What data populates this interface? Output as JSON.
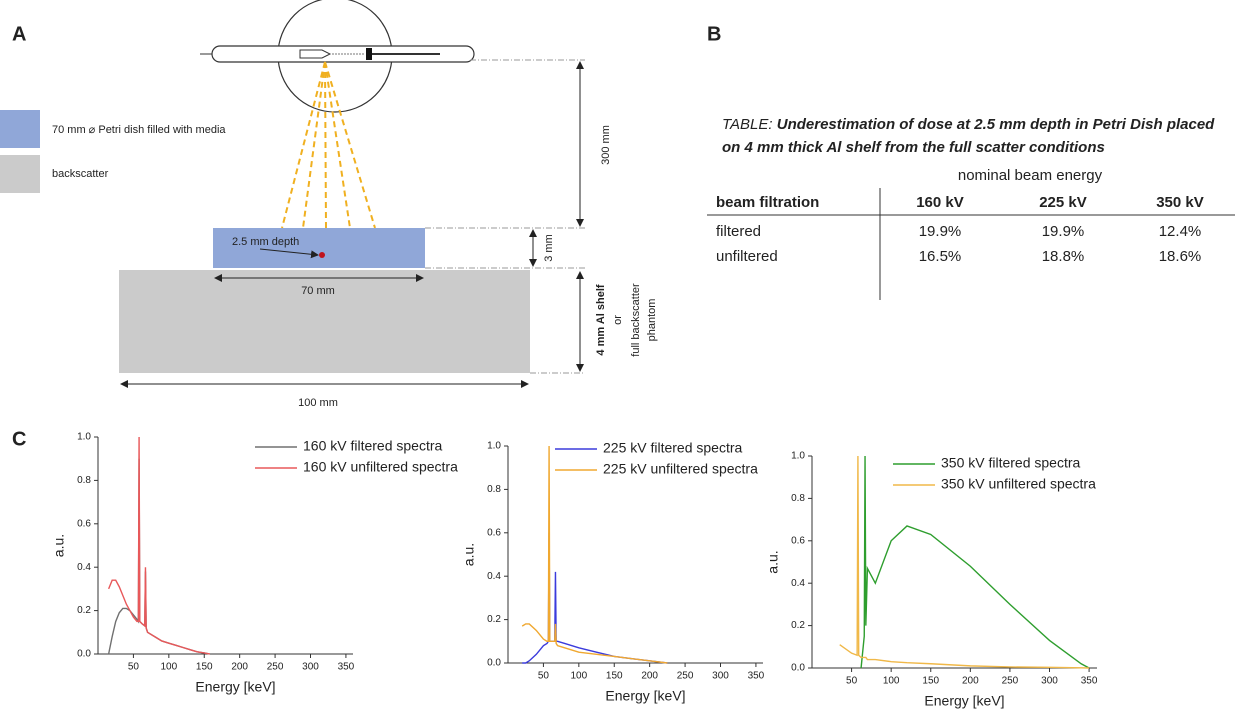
{
  "panels": {
    "a": "A",
    "b": "B",
    "c": "C"
  },
  "diagram": {
    "legend": [
      "70 mm ⌀ Petri dish filled with media",
      "backscatter"
    ],
    "depth_label": "2.5 mm depth",
    "dish_width": "70 mm",
    "shelf_width": "100 mm",
    "distance": "300 mm",
    "dish_height": "3 mm",
    "shelf_label": "4 mm Al shelf",
    "or": "or",
    "alt_label": [
      "full backscatter",
      "phantom"
    ]
  },
  "table": {
    "title_prefix": "TABLE:",
    "title": "Underestimation of dose at 2.5 mm depth in Petri Dish placed on 4 mm thick Al shelf from the full scatter conditions",
    "group_header": "nominal beam energy",
    "header": [
      "beam filtration",
      "160 kV",
      "225 kV",
      "350 kV"
    ],
    "rows": [
      [
        "filtered",
        "19.9%",
        "19.9%",
        "12.4%"
      ],
      [
        "unfiltered",
        "16.5%",
        "18.8%",
        "18.6%"
      ]
    ]
  },
  "chart_data": [
    {
      "type": "line",
      "xlabel": "Energy [keV]",
      "ylabel": "a.u.",
      "xlim": [
        0,
        360
      ],
      "ylim": [
        0,
        1.0
      ],
      "xticks": [
        50,
        100,
        150,
        200,
        250,
        300,
        350
      ],
      "yticks": [
        {
          "value": 0,
          "label": "0.0"
        },
        0.2,
        0.4,
        0.6,
        0.8,
        {
          "value": 1.0,
          "label": "1.0"
        }
      ],
      "legend": "upper right",
      "x": [
        15,
        20,
        25,
        30,
        35,
        40,
        45,
        50,
        55,
        57,
        58,
        59,
        62,
        66,
        67,
        68,
        70,
        80,
        90,
        100,
        110,
        120,
        130,
        140,
        150,
        158
      ],
      "series": [
        {
          "name": "160 kV filtered spectra",
          "color": "#707070",
          "values": [
            0.0,
            0.08,
            0.15,
            0.19,
            0.21,
            0.21,
            0.2,
            0.18,
            0.16,
            0.15,
            0.9,
            0.15,
            0.14,
            0.13,
            0.38,
            0.12,
            0.1,
            0.08,
            0.06,
            0.05,
            0.04,
            0.03,
            0.02,
            0.01,
            0.005,
            0
          ]
        },
        {
          "name": "160 kV unfiltered spectra",
          "color": "#e8585a",
          "values": [
            0.3,
            0.34,
            0.34,
            0.31,
            0.27,
            0.23,
            0.2,
            0.17,
            0.15,
            0.15,
            1.0,
            0.15,
            0.14,
            0.13,
            0.4,
            0.12,
            0.1,
            0.08,
            0.06,
            0.05,
            0.04,
            0.03,
            0.02,
            0.01,
            0.005,
            0
          ]
        }
      ]
    },
    {
      "type": "line",
      "xlabel": "Energy [keV]",
      "ylabel": "a.u.",
      "xlim": [
        0,
        360
      ],
      "ylim": [
        0,
        1.0
      ],
      "xticks": [
        50,
        100,
        150,
        200,
        250,
        300,
        350
      ],
      "yticks": [
        {
          "value": 0,
          "label": "0.0"
        },
        0.2,
        0.4,
        0.6,
        0.8,
        {
          "value": 1.0,
          "label": "1.0"
        }
      ],
      "legend": "upper right",
      "x": [
        20,
        25,
        30,
        40,
        50,
        55,
        57,
        58,
        59,
        62,
        66,
        67,
        68,
        70,
        80,
        100,
        125,
        150,
        175,
        200,
        225
      ],
      "series": [
        {
          "name": "225 kV filtered spectra",
          "color": "#3b3bdc",
          "values": [
            0,
            0,
            0.01,
            0.04,
            0.08,
            0.09,
            0.1,
            0.6,
            0.1,
            0.1,
            0.1,
            0.42,
            0.1,
            0.1,
            0.09,
            0.07,
            0.05,
            0.03,
            0.02,
            0.01,
            0
          ]
        },
        {
          "name": "225 kV unfiltered spectra",
          "color": "#f0a830",
          "values": [
            0.17,
            0.18,
            0.18,
            0.15,
            0.11,
            0.1,
            0.1,
            1.0,
            0.1,
            0.1,
            0.1,
            0.18,
            0.09,
            0.08,
            0.07,
            0.05,
            0.04,
            0.03,
            0.02,
            0.01,
            0
          ]
        }
      ]
    },
    {
      "type": "line",
      "xlabel": "Energy [keV]",
      "ylabel": "a.u.",
      "xlim": [
        0,
        360
      ],
      "ylim": [
        0,
        1.0
      ],
      "xticks": [
        50,
        100,
        150,
        200,
        250,
        300,
        350
      ],
      "yticks": [
        {
          "value": 0,
          "label": "0.0"
        },
        0.2,
        0.4,
        0.6,
        0.8,
        {
          "value": 1.0,
          "label": "1.0"
        }
      ],
      "legend": "upper right",
      "x": [
        35,
        50,
        57,
        58,
        59,
        62,
        66,
        67,
        68,
        70,
        80,
        100,
        120,
        150,
        200,
        250,
        300,
        340,
        350
      ],
      "series": [
        {
          "name": "350 kV filtered spectra",
          "color": "#2e9e2e",
          "values": [
            null,
            null,
            null,
            null,
            null,
            0,
            0.15,
            1.0,
            0.2,
            0.47,
            0.4,
            0.6,
            0.67,
            0.63,
            0.48,
            0.3,
            0.13,
            0.02,
            0
          ]
        },
        {
          "name": "350 kV unfiltered spectra",
          "color": "#f0b848",
          "values": [
            0.11,
            0.07,
            0.06,
            1.0,
            0.06,
            0.05,
            0.05,
            0.05,
            0.05,
            0.04,
            0.04,
            0.03,
            0.025,
            0.02,
            0.01,
            0.005,
            0.003,
            0.001,
            0
          ]
        }
      ]
    }
  ]
}
